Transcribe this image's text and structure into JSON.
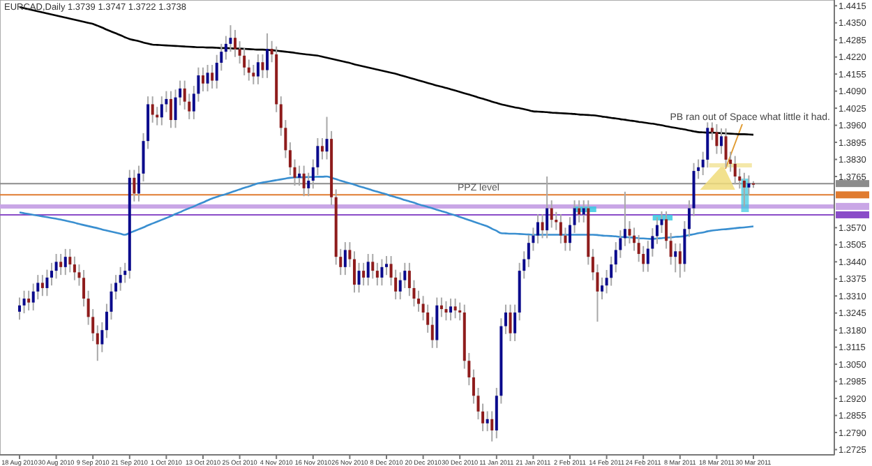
{
  "chart_data": {
    "type": "candlestick",
    "title": "EURCAD,Daily  1.3739 1.3747 1.3722 1.3738",
    "categories": [
      "18 Aug 2010",
      null,
      null,
      null,
      null,
      null,
      null,
      null,
      "30 Aug 2010",
      null,
      null,
      null,
      null,
      null,
      null,
      null,
      "9 Sep 2010",
      null,
      null,
      null,
      null,
      null,
      null,
      null,
      "21 Sep 2010",
      null,
      null,
      null,
      null,
      null,
      null,
      null,
      "1 Oct 2010",
      null,
      null,
      null,
      null,
      null,
      null,
      null,
      "13 Oct 2010",
      null,
      null,
      null,
      null,
      null,
      null,
      null,
      "25 Oct 2010",
      null,
      null,
      null,
      null,
      null,
      null,
      null,
      "4 Nov 2010",
      null,
      null,
      null,
      null,
      null,
      null,
      null,
      "16 Nov 2010",
      null,
      null,
      null,
      null,
      null,
      null,
      null,
      "26 Nov 2010",
      null,
      null,
      null,
      null,
      null,
      null,
      null,
      "8 Dec 2010",
      null,
      null,
      null,
      null,
      null,
      null,
      null,
      "20 Dec 2010",
      null,
      null,
      null,
      null,
      null,
      null,
      null,
      "30 Dec 2010",
      null,
      null,
      null,
      null,
      null,
      null,
      null,
      "11 Jan 2011",
      null,
      null,
      null,
      null,
      null,
      null,
      null,
      "21 Jan 2011",
      null,
      null,
      null,
      null,
      null,
      null,
      null,
      "2 Feb 2011",
      null,
      null,
      null,
      null,
      null,
      null,
      null,
      "14 Feb 2011",
      null,
      null,
      null,
      null,
      null,
      null,
      null,
      "24 Feb 2011",
      null,
      null,
      null,
      null,
      null,
      null,
      null,
      "8 Mar 2011",
      null,
      null,
      null,
      null,
      null,
      null,
      null,
      "18 Mar 2011",
      null,
      null,
      null,
      null,
      null,
      null,
      null,
      "30 Mar 2011"
    ],
    "ohlc": [
      [
        1.325,
        1.3304,
        1.322,
        1.3274
      ],
      [
        1.3274,
        1.333,
        1.3244,
        1.33
      ],
      [
        1.33,
        1.333,
        1.3255,
        1.3285
      ],
      [
        1.3285,
        1.3357,
        1.3255,
        1.3327
      ],
      [
        1.3327,
        1.339,
        1.3297,
        1.336
      ],
      [
        1.336,
        1.339,
        1.331,
        1.334
      ],
      [
        1.334,
        1.341,
        1.331,
        1.338
      ],
      [
        1.338,
        1.3436,
        1.335,
        1.3406
      ],
      [
        1.3406,
        1.347,
        1.3376,
        1.344
      ],
      [
        1.344,
        1.347,
        1.339,
        1.342
      ],
      [
        1.342,
        1.3489,
        1.339,
        1.3459
      ],
      [
        1.3459,
        1.3489,
        1.34,
        1.343
      ],
      [
        1.343,
        1.346,
        1.337,
        1.34
      ],
      [
        1.34,
        1.343,
        1.3349,
        1.3379
      ],
      [
        1.3379,
        1.3409,
        1.327,
        1.33
      ],
      [
        1.33,
        1.333,
        1.32,
        1.323
      ],
      [
        1.323,
        1.326,
        1.3138,
        1.3168
      ],
      [
        1.3168,
        1.3198,
        1.3063,
        1.3126
      ],
      [
        1.3126,
        1.321,
        1.3096,
        1.318
      ],
      [
        1.318,
        1.328,
        1.315,
        1.325
      ],
      [
        1.325,
        1.3357,
        1.322,
        1.3327
      ],
      [
        1.3327,
        1.339,
        1.3297,
        1.336
      ],
      [
        1.336,
        1.342,
        1.333,
        1.339
      ],
      [
        1.339,
        1.3436,
        1.336,
        1.3406
      ],
      [
        1.3406,
        1.379,
        1.3376,
        1.376
      ],
      [
        1.376,
        1.379,
        1.367,
        1.37
      ],
      [
        1.37,
        1.3806,
        1.367,
        1.3776
      ],
      [
        1.3776,
        1.393,
        1.3746,
        1.39
      ],
      [
        1.39,
        1.407,
        1.387,
        1.404
      ],
      [
        1.404,
        1.407,
        1.397,
        1.4
      ],
      [
        1.4,
        1.403,
        1.396,
        1.399
      ],
      [
        1.399,
        1.407,
        1.396,
        1.404
      ],
      [
        1.404,
        1.409,
        1.401,
        1.406
      ],
      [
        1.406,
        1.409,
        1.395,
        1.398
      ],
      [
        1.398,
        1.4096,
        1.395,
        1.4066
      ],
      [
        1.4066,
        1.413,
        1.4036,
        1.41
      ],
      [
        1.41,
        1.413,
        1.402,
        1.405
      ],
      [
        1.405,
        1.408,
        1.3983,
        1.4013
      ],
      [
        1.4013,
        1.411,
        1.3983,
        1.408
      ],
      [
        1.408,
        1.418,
        1.405,
        1.415
      ],
      [
        1.415,
        1.418,
        1.4089,
        1.4119
      ],
      [
        1.4119,
        1.419,
        1.4089,
        1.416
      ],
      [
        1.416,
        1.419,
        1.41,
        1.413
      ],
      [
        1.413,
        1.4228,
        1.41,
        1.4198
      ],
      [
        1.4198,
        1.427,
        1.4168,
        1.424
      ],
      [
        1.424,
        1.43,
        1.421,
        1.427
      ],
      [
        1.427,
        1.4341,
        1.424,
        1.4293
      ],
      [
        1.4293,
        1.4323,
        1.422,
        1.425
      ],
      [
        1.425,
        1.428,
        1.4195,
        1.4225
      ],
      [
        1.4225,
        1.4255,
        1.415,
        1.418
      ],
      [
        1.418,
        1.421,
        1.413,
        1.416
      ],
      [
        1.416,
        1.419,
        1.4116,
        1.4146
      ],
      [
        1.4146,
        1.423,
        1.4116,
        1.42
      ],
      [
        1.42,
        1.423,
        1.414,
        1.417
      ],
      [
        1.417,
        1.431,
        1.414,
        1.4251
      ],
      [
        1.4251,
        1.4281,
        1.42,
        1.423
      ],
      [
        1.423,
        1.426,
        1.401,
        1.404
      ],
      [
        1.404,
        1.407,
        1.392,
        1.395
      ],
      [
        1.395,
        1.398,
        1.3835,
        1.3865
      ],
      [
        1.3865,
        1.3895,
        1.377,
        1.38
      ],
      [
        1.38,
        1.383,
        1.373,
        1.376
      ],
      [
        1.376,
        1.3806,
        1.373,
        1.3776
      ],
      [
        1.3776,
        1.3806,
        1.369,
        1.372
      ],
      [
        1.372,
        1.3779,
        1.369,
        1.3749
      ],
      [
        1.3749,
        1.383,
        1.3719,
        1.38
      ],
      [
        1.38,
        1.3911,
        1.377,
        1.3881
      ],
      [
        1.3881,
        1.3911,
        1.383,
        1.386
      ],
      [
        1.386,
        1.3992,
        1.383,
        1.3908
      ],
      [
        1.3908,
        1.3938,
        1.3656,
        1.3686
      ],
      [
        1.3686,
        1.3716,
        1.3429,
        1.3459
      ],
      [
        1.3459,
        1.3489,
        1.339,
        1.342
      ],
      [
        1.342,
        1.3515,
        1.339,
        1.3485
      ],
      [
        1.3485,
        1.3515,
        1.342,
        1.345
      ],
      [
        1.345,
        1.348,
        1.3323,
        1.3353
      ],
      [
        1.3353,
        1.3436,
        1.3323,
        1.3406
      ],
      [
        1.3406,
        1.3436,
        1.335,
        1.338
      ],
      [
        1.338,
        1.347,
        1.335,
        1.344
      ],
      [
        1.344,
        1.347,
        1.3376,
        1.3406
      ],
      [
        1.3406,
        1.3436,
        1.335,
        1.338
      ],
      [
        1.338,
        1.345,
        1.335,
        1.342
      ],
      [
        1.342,
        1.3462,
        1.339,
        1.3432
      ],
      [
        1.3432,
        1.3462,
        1.335,
        1.338
      ],
      [
        1.338,
        1.341,
        1.3297,
        1.3327
      ],
      [
        1.3327,
        1.34,
        1.3297,
        1.337
      ],
      [
        1.337,
        1.3436,
        1.334,
        1.3406
      ],
      [
        1.3406,
        1.3436,
        1.331,
        1.334
      ],
      [
        1.334,
        1.337,
        1.327,
        1.33
      ],
      [
        1.33,
        1.333,
        1.325,
        1.328
      ],
      [
        1.328,
        1.331,
        1.3217,
        1.3247
      ],
      [
        1.3247,
        1.3277,
        1.317,
        1.32
      ],
      [
        1.32,
        1.323,
        1.3112,
        1.3142
      ],
      [
        1.3142,
        1.3304,
        1.3112,
        1.3274
      ],
      [
        1.3274,
        1.3304,
        1.323,
        1.326
      ],
      [
        1.326,
        1.329,
        1.3217,
        1.3247
      ],
      [
        1.3247,
        1.33,
        1.3217,
        1.327
      ],
      [
        1.327,
        1.33,
        1.3225,
        1.3255
      ],
      [
        1.3255,
        1.3285,
        1.3217,
        1.3247
      ],
      [
        1.3247,
        1.3277,
        1.3033,
        1.3063
      ],
      [
        1.3063,
        1.3093,
        1.297,
        1.3
      ],
      [
        1.3,
        1.303,
        1.29,
        1.293
      ],
      [
        1.293,
        1.296,
        1.284,
        1.287
      ],
      [
        1.287,
        1.29,
        1.2795,
        1.2825
      ],
      [
        1.2825,
        1.2871,
        1.2795,
        1.2841
      ],
      [
        1.2841,
        1.2871,
        1.2756,
        1.2798
      ],
      [
        1.2798,
        1.296,
        1.2768,
        1.293
      ],
      [
        1.293,
        1.3225,
        1.29,
        1.3195
      ],
      [
        1.3195,
        1.3277,
        1.3165,
        1.3247
      ],
      [
        1.3247,
        1.3277,
        1.3138,
        1.3168
      ],
      [
        1.3168,
        1.3277,
        1.3138,
        1.3247
      ],
      [
        1.3247,
        1.3436,
        1.3217,
        1.3406
      ],
      [
        1.3406,
        1.348,
        1.3376,
        1.345
      ],
      [
        1.345,
        1.3542,
        1.342,
        1.3512
      ],
      [
        1.3512,
        1.357,
        1.3482,
        1.354
      ],
      [
        1.354,
        1.3621,
        1.351,
        1.3591
      ],
      [
        1.3591,
        1.3621,
        1.353,
        1.356
      ],
      [
        1.356,
        1.3765,
        1.353,
        1.3644
      ],
      [
        1.3644,
        1.3674,
        1.357,
        1.36
      ],
      [
        1.36,
        1.363,
        1.3561,
        1.3591
      ],
      [
        1.3591,
        1.3621,
        1.351,
        1.354
      ],
      [
        1.354,
        1.357,
        1.3482,
        1.3512
      ],
      [
        1.3512,
        1.361,
        1.3482,
        1.358
      ],
      [
        1.358,
        1.3674,
        1.355,
        1.3644
      ],
      [
        1.3644,
        1.3674,
        1.359,
        1.362
      ],
      [
        1.362,
        1.3674,
        1.359,
        1.3644
      ],
      [
        1.3644,
        1.3674,
        1.3429,
        1.3459
      ],
      [
        1.3459,
        1.3489,
        1.337,
        1.34
      ],
      [
        1.34,
        1.343,
        1.3212,
        1.3327
      ],
      [
        1.3327,
        1.338,
        1.3297,
        1.335
      ],
      [
        1.335,
        1.3409,
        1.332,
        1.3379
      ],
      [
        1.3379,
        1.346,
        1.3349,
        1.343
      ],
      [
        1.343,
        1.3515,
        1.34,
        1.3485
      ],
      [
        1.3485,
        1.356,
        1.3455,
        1.353
      ],
      [
        1.353,
        1.3707,
        1.35,
        1.3565
      ],
      [
        1.3565,
        1.3595,
        1.351,
        1.354
      ],
      [
        1.354,
        1.357,
        1.3482,
        1.3512
      ],
      [
        1.3512,
        1.3542,
        1.344,
        1.347
      ],
      [
        1.347,
        1.35,
        1.3402,
        1.3432
      ],
      [
        1.3432,
        1.352,
        1.3402,
        1.349
      ],
      [
        1.349,
        1.3568,
        1.346,
        1.3538
      ],
      [
        1.3538,
        1.361,
        1.3508,
        1.358
      ],
      [
        1.358,
        1.3632,
        1.355,
        1.3602
      ],
      [
        1.3602,
        1.3632,
        1.349,
        1.352
      ],
      [
        1.352,
        1.355,
        1.3429,
        1.3459
      ],
      [
        1.3459,
        1.351,
        1.34,
        1.348
      ],
      [
        1.348,
        1.351,
        1.338,
        1.3432
      ],
      [
        1.3432,
        1.3595,
        1.3402,
        1.3565
      ],
      [
        1.3565,
        1.3674,
        1.3535,
        1.3644
      ],
      [
        1.3644,
        1.3816,
        1.3614,
        1.3786
      ],
      [
        1.3786,
        1.383,
        1.3756,
        1.38
      ],
      [
        1.38,
        1.3859,
        1.377,
        1.3829
      ],
      [
        1.3829,
        1.3971,
        1.3799,
        1.395
      ],
      [
        1.395,
        1.3971,
        1.3904,
        1.3934
      ],
      [
        1.3934,
        1.3964,
        1.3851,
        1.3881
      ],
      [
        1.3881,
        1.3948,
        1.3851,
        1.3918
      ],
      [
        1.3918,
        1.3948,
        1.3799,
        1.3829
      ],
      [
        1.3829,
        1.3859,
        1.3783,
        1.3813
      ],
      [
        1.3813,
        1.3843,
        1.3735,
        1.3765
      ],
      [
        1.3765,
        1.3795,
        1.3719,
        1.3749
      ],
      [
        1.3749,
        1.3779,
        1.365,
        1.3723
      ],
      [
        1.3723,
        1.3769,
        1.3693,
        1.3739
      ],
      [
        1.3739,
        1.3747,
        1.3722,
        1.3738
      ]
    ],
    "series": [
      {
        "type": "line",
        "color": "#000000",
        "values": [
          1.441,
          1.4406,
          1.4402,
          1.4398,
          1.4394,
          1.439,
          1.4386,
          1.4382,
          1.4378,
          1.4374,
          1.437,
          1.4366,
          1.4362,
          1.4358,
          1.4354,
          1.435,
          1.4346,
          1.4339,
          1.4332,
          1.4324,
          1.4317,
          1.431,
          1.4303,
          1.4295,
          1.4288,
          1.4284,
          1.428,
          1.4275,
          1.4271,
          1.4267,
          1.4266,
          1.4265,
          1.4264,
          1.4263,
          1.4262,
          1.4261,
          1.426,
          1.4259,
          1.4258,
          1.4257,
          1.4257,
          1.4256,
          1.4256,
          1.4255,
          1.4254,
          1.4254,
          1.4253,
          1.4252,
          1.4252,
          1.4251,
          1.425,
          1.4249,
          1.4248,
          1.4248,
          1.4247,
          1.4246,
          1.4244,
          1.4242,
          1.424,
          1.4238,
          1.4236,
          1.4233,
          1.4231,
          1.4229,
          1.4227,
          1.4225,
          1.4221,
          1.4217,
          1.4213,
          1.4209,
          1.4205,
          1.4201,
          1.4197,
          1.4192,
          1.4188,
          1.4184,
          1.418,
          1.4176,
          1.4172,
          1.4168,
          1.4164,
          1.416,
          1.4156,
          1.4151,
          1.4146,
          1.4141,
          1.4136,
          1.4131,
          1.4126,
          1.4121,
          1.4116,
          1.4111,
          1.4107,
          1.4102,
          1.4097,
          1.4092,
          1.4087,
          1.4082,
          1.4077,
          1.4072,
          1.4066,
          1.4061,
          1.4056,
          1.405,
          1.4045,
          1.404,
          1.4036,
          1.4032,
          1.4028,
          1.4025,
          1.4021,
          1.4017,
          1.4013,
          1.4012,
          1.4011,
          1.401,
          1.4008,
          1.4007,
          1.4006,
          1.4005,
          1.4004,
          1.4003,
          1.4001,
          1.4,
          1.3999,
          1.3998,
          1.3996,
          1.3993,
          1.3991,
          1.3988,
          1.3986,
          1.3983,
          1.3981,
          1.3978,
          1.3976,
          1.3973,
          1.3971,
          1.3968,
          1.3966,
          1.3963,
          1.396,
          1.3956,
          1.3953,
          1.395,
          1.3947,
          1.3944,
          1.394,
          1.3937,
          1.3934,
          1.3933,
          1.3932,
          1.3932,
          1.3931,
          1.393,
          1.3929,
          1.3928,
          1.3927,
          1.3926,
          1.3926,
          1.3925,
          1.3924
        ]
      },
      {
        "type": "line",
        "color": "#3a8fd0",
        "values": [
          1.3628,
          1.3625,
          1.3622,
          1.3619,
          1.3616,
          1.3613,
          1.361,
          1.3607,
          1.3604,
          1.3601,
          1.3597,
          1.3593,
          1.3589,
          1.3584,
          1.358,
          1.3576,
          1.3572,
          1.3568,
          1.3563,
          1.3559,
          1.3555,
          1.3551,
          1.3547,
          1.3543,
          1.355,
          1.3557,
          1.3564,
          1.3571,
          1.3579,
          1.3586,
          1.3593,
          1.36,
          1.3607,
          1.3614,
          1.3622,
          1.3629,
          1.3637,
          1.3644,
          1.3651,
          1.3659,
          1.3666,
          1.3674,
          1.3681,
          1.3687,
          1.3693,
          1.3698,
          1.3704,
          1.371,
          1.3716,
          1.3722,
          1.3727,
          1.3733,
          1.3739,
          1.3742,
          1.3745,
          1.3748,
          1.3751,
          1.3754,
          1.3757,
          1.376,
          1.3761,
          1.3762,
          1.3762,
          1.3763,
          1.3763,
          1.3764,
          1.3764,
          1.3765,
          1.376,
          1.3755,
          1.3749,
          1.3744,
          1.3739,
          1.3734,
          1.3728,
          1.3723,
          1.3718,
          1.3712,
          1.3707,
          1.3702,
          1.3697,
          1.3691,
          1.3686,
          1.3681,
          1.3675,
          1.367,
          1.3665,
          1.3659,
          1.3654,
          1.3649,
          1.3644,
          1.3638,
          1.3633,
          1.3628,
          1.3622,
          1.3617,
          1.3611,
          1.3605,
          1.3599,
          1.3593,
          1.3587,
          1.3581,
          1.3575,
          1.3566,
          1.3558,
          1.3549,
          1.3548,
          1.3547,
          1.3547,
          1.3546,
          1.3545,
          1.3544,
          1.3543,
          1.3543,
          1.3543,
          1.3543,
          1.3543,
          1.3543,
          1.3543,
          1.3543,
          1.3543,
          1.3543,
          1.3543,
          1.3543,
          1.3543,
          1.3543,
          1.3542,
          1.354,
          1.3539,
          1.3538,
          1.3537,
          1.3535,
          1.3534,
          1.3533,
          1.3532,
          1.353,
          1.3529,
          1.3528,
          1.3527,
          1.3529,
          1.353,
          1.3532,
          1.3533,
          1.3535,
          1.3536,
          1.3538,
          1.3542,
          1.3545,
          1.3549,
          1.3552,
          1.3556,
          1.3559,
          1.3561,
          1.3563,
          1.3564,
          1.3566,
          1.3568,
          1.357,
          1.3571,
          1.3573,
          1.3575
        ]
      }
    ],
    "ylim": [
      1.2705,
      1.4437
    ],
    "yticks": [
      1.4415,
      {
        "value": 1.435,
        "label": "1.4350"
      },
      1.4285,
      {
        "value": 1.422,
        "label": "1.4220"
      },
      1.4155,
      {
        "value": 1.409,
        "label": "1.4090"
      },
      1.4025,
      {
        "value": 1.396,
        "label": "1.3960"
      },
      1.3895,
      {
        "value": 1.383,
        "label": "1.3830"
      },
      1.3765,
      {
        "value": 1.357,
        "label": "1.3570"
      },
      1.3505,
      {
        "value": 1.344,
        "label": "1.3440"
      },
      1.3375,
      {
        "value": 1.331,
        "label": "1.3310"
      },
      1.3245,
      {
        "value": 1.318,
        "label": "1.3180"
      },
      1.3115,
      {
        "value": 1.305,
        "label": "1.3050"
      },
      1.2985,
      {
        "value": 1.292,
        "label": "1.2920"
      },
      1.2855,
      {
        "value": 1.279,
        "label": "1.2790"
      },
      1.2725
    ],
    "ref_lines": [
      {
        "axis": "y",
        "value": 1.3738,
        "color": "#8c8c8c"
      },
      {
        "axis": "y",
        "value": 1.3695,
        "color": "#e07b30",
        "label": "PPZ level"
      },
      {
        "axis": "y",
        "value": 1.3651,
        "color": "#c9a6e6"
      },
      {
        "axis": "y",
        "value": 1.3619,
        "color": "#8a4cc8"
      }
    ],
    "annotations": [
      "PB ran out of Space what little it had."
    ]
  }
}
